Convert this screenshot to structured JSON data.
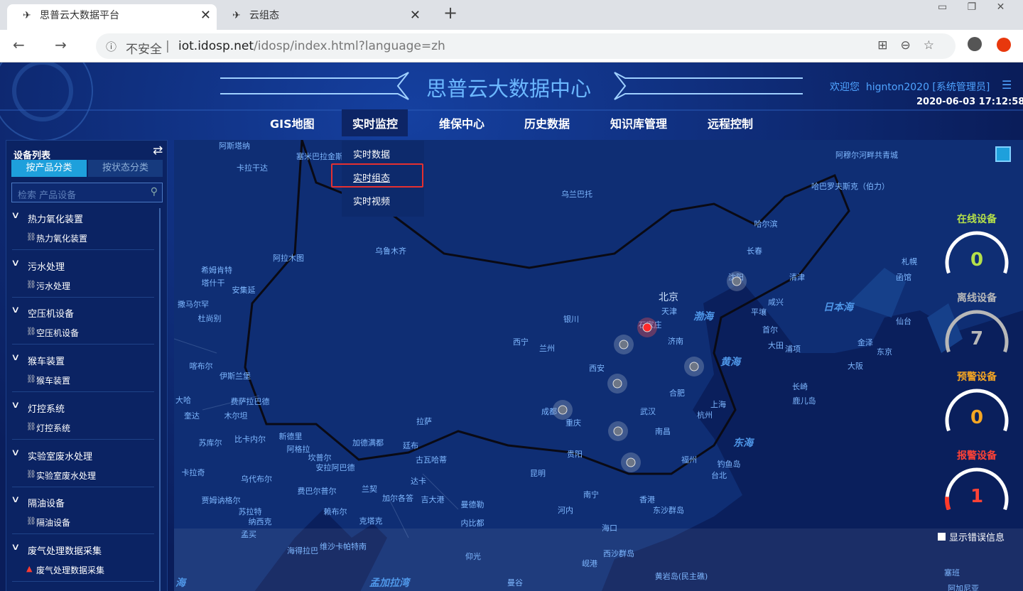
{
  "browser": {
    "tabs": [
      "思普云大数据平台",
      "云组态"
    ],
    "security": "不安全",
    "url_host": "iot.idosp.net",
    "url_path": "/idosp/index.html?language=zh"
  },
  "header": {
    "title": "思普云大数据中心",
    "welcome": "欢迎您",
    "user": "hignton2020 [系统管理员]",
    "datetime": "2020-06-03 17:12:58"
  },
  "nav": {
    "items": [
      "GIS地图",
      "实时监控",
      "维保中心",
      "历史数据",
      "知识库管理",
      "远程控制"
    ],
    "dropdown": [
      "实时数据",
      "实时组态",
      "实时视频"
    ]
  },
  "sidebar": {
    "title": "设备列表",
    "tabs": [
      "按产品分类",
      "按状态分类"
    ],
    "search_placeholder": "检索 产品设备",
    "groups": [
      {
        "name": "热力氧化装置",
        "children": [
          "热力氧化装置"
        ]
      },
      {
        "name": "污水处理",
        "children": [
          "污水处理"
        ]
      },
      {
        "name": "空压机设备",
        "children": [
          "空压机设备"
        ]
      },
      {
        "name": "猴车装置",
        "children": [
          "猴车装置"
        ]
      },
      {
        "name": "灯控系统",
        "children": [
          "灯控系统"
        ]
      },
      {
        "name": "实验室废水处理",
        "children": [
          "实验室废水处理"
        ]
      },
      {
        "name": "隔油设备",
        "children": [
          "隔油设备"
        ]
      },
      {
        "name": "废气处理数据采集",
        "children": [
          "废气处理数据采集"
        ]
      }
    ]
  },
  "stats": [
    {
      "label": "在线设备",
      "value": "0"
    },
    {
      "label": "离线设备",
      "value": "7"
    },
    {
      "label": "预警设备",
      "value": "0"
    },
    {
      "label": "报警设备",
      "value": "1"
    }
  ],
  "map": {
    "checkbox": "显示错误信息",
    "labels": [
      "阿斯塔纳",
      "塞米巴拉金斯",
      "卡拉干达",
      "乌兰巴托",
      "阿穆尔河畔共青城",
      "哈巴罗夫斯克（伯力）",
      "哈尔滨",
      "乌鲁木齐",
      "阿拉木图",
      "长春",
      "札幌",
      "希姆肯特",
      "塔什干",
      "安集延",
      "沈阳",
      "函馆",
      "北京",
      "清津",
      "撒马尔罕",
      "天津",
      "渤海",
      "咸兴",
      "日本海",
      "杜尚别",
      "银川",
      "平壤",
      "仙台",
      "石家庄",
      "首尔",
      "西宁",
      "兰州",
      "济南",
      "大田",
      "金泽",
      "黄海",
      "浦项",
      "东京",
      "喀布尔",
      "伊斯兰堡",
      "西安",
      "大阪",
      "长崎",
      "合肥",
      "鹿儿岛",
      "大哈",
      "费萨拉巴德",
      "上海",
      "成都",
      "武汉",
      "杭州",
      "奎达",
      "木尔坦",
      "重庆",
      "拉萨",
      "南昌",
      "东海",
      "新德里",
      "苏库尔",
      "比卡内尔",
      "加德满都",
      "廷布",
      "阿格拉",
      "坎普尔",
      "古瓦哈蒂",
      "贵阳",
      "福州",
      "安拉阿巴德",
      "钓鱼岛",
      "卡拉奇",
      "昆明",
      "台北",
      "乌代布尔",
      "达卡",
      "费巴尔普尔",
      "兰契",
      "加尔各答",
      "吉大港",
      "南宁",
      "香港",
      "曼德勒",
      "贾姆讷格尔",
      "苏拉特",
      "纳西克",
      "赖布尔",
      "克塔克",
      "河内",
      "东沙群岛",
      "内比都",
      "孟买",
      "海口",
      "海得拉巴",
      "维沙卡帕特南",
      "仰光",
      "西沙群岛",
      "岘港",
      "黄岩岛(民主礁)",
      "孟加拉湾",
      "曼谷",
      "塞班",
      "阿加尼亚",
      "海"
    ]
  }
}
